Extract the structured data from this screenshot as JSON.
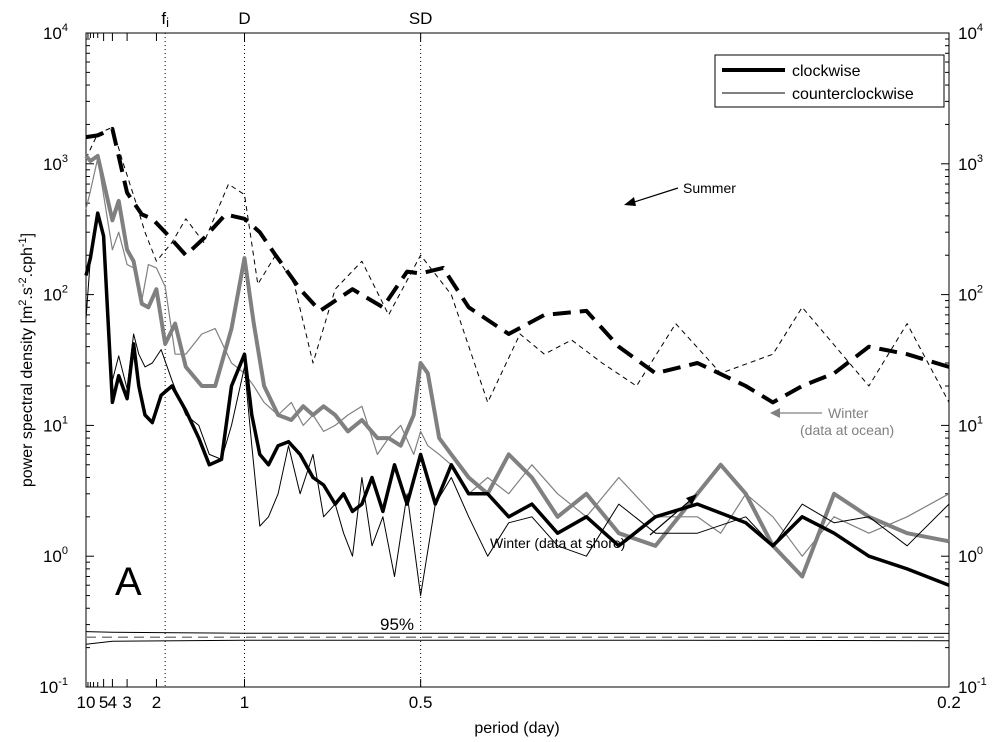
{
  "chart_data": {
    "type": "line",
    "xlabel": "period (day)",
    "ylabel": "power spectral density [m2.s-2.cph-1]",
    "ylabel_parts": {
      "main": "power spectral density [m",
      "sup1": "2",
      "mid1": ".s",
      "sup2": "-2",
      "mid2": ".cph",
      "sup3": "-1",
      "end": "]"
    },
    "x_scale": "reciprocal",
    "xlim": [
      10,
      0.2
    ],
    "y_scale": "log",
    "ylim": [
      0.1,
      10000
    ],
    "x_ticks": [
      10,
      5,
      4,
      3,
      2,
      1,
      0.5,
      0.2
    ],
    "x_tick_labels": [
      "10",
      "5",
      "4",
      "3",
      "2",
      "1",
      "0.5",
      "0.2"
    ],
    "y_ticks": [
      0.1,
      1,
      10,
      100,
      1000,
      10000
    ],
    "y_tick_labels": [
      {
        "base": "10",
        "exp": "-1"
      },
      {
        "base": "10",
        "exp": "0"
      },
      {
        "base": "10",
        "exp": "1"
      },
      {
        "base": "10",
        "exp": "2"
      },
      {
        "base": "10",
        "exp": "3"
      },
      {
        "base": "10",
        "exp": "4"
      }
    ],
    "grid": false,
    "panel_label": "A",
    "vertical_markers": [
      {
        "label": "f",
        "label_sub": "i",
        "x": 1.82
      },
      {
        "label": "D",
        "x": 1.0
      },
      {
        "label": "SD",
        "x": 0.5
      }
    ],
    "legend": {
      "placement": "top-right",
      "entries": [
        {
          "label": "clockwise",
          "style": "thick"
        },
        {
          "label": "counterclockwise",
          "style": "thin"
        }
      ]
    },
    "annotations": [
      {
        "text": "Summer",
        "color": "#000000"
      },
      {
        "text": "Winter",
        "text2": "(data at ocean)",
        "color": "#808080"
      },
      {
        "text": "Winter (data at shore)",
        "color": "#000000"
      },
      {
        "text": "95%",
        "color": "#000000"
      }
    ],
    "series": [
      {
        "group": "Summer",
        "direction": "clockwise",
        "color": "#000000",
        "width": 4,
        "dash": "18,9",
        "x": [
          10,
          6,
          4,
          3,
          2.4,
          2.1,
          1.82,
          1.5,
          1.3,
          1.12,
          1.0,
          0.92,
          0.85,
          0.76,
          0.7,
          0.62,
          0.56,
          0.52,
          0.5,
          0.47,
          0.44,
          0.4,
          0.37,
          0.34,
          0.32,
          0.3,
          0.28,
          0.26,
          0.25,
          0.24,
          0.23,
          0.22,
          0.21,
          0.2
        ],
        "y": [
          1600,
          1650,
          1850,
          600,
          410,
          380,
          300,
          200,
          270,
          410,
          380,
          300,
          200,
          110,
          75,
          110,
          80,
          150,
          145,
          160,
          80,
          50,
          70,
          75,
          40,
          25,
          30,
          20,
          15,
          20,
          25,
          40,
          35,
          28
        ]
      },
      {
        "group": "Summer",
        "direction": "counterclockwise",
        "color": "#000000",
        "width": 1,
        "dash": "5,4",
        "x": [
          10,
          6,
          4,
          3.2,
          2.6,
          2.3,
          2.0,
          1.7,
          1.5,
          1.3,
          1.1,
          1.0,
          0.93,
          0.85,
          0.78,
          0.72,
          0.66,
          0.6,
          0.55,
          0.5,
          0.46,
          0.42,
          0.39,
          0.37,
          0.35,
          0.33,
          0.31,
          0.29,
          0.27,
          0.25,
          0.24,
          0.22,
          0.21,
          0.2
        ],
        "y": [
          1100,
          1700,
          1900,
          1000,
          500,
          300,
          180,
          250,
          380,
          250,
          700,
          580,
          120,
          200,
          120,
          30,
          110,
          180,
          70,
          200,
          100,
          15,
          50,
          35,
          45,
          30,
          20,
          60,
          25,
          35,
          80,
          20,
          60,
          15
        ]
      },
      {
        "group": "Winter (data at ocean)",
        "direction": "clockwise",
        "color": "#808080",
        "width": 4,
        "dash": "",
        "x": [
          10,
          8,
          6,
          4,
          3.5,
          3.0,
          2.7,
          2.4,
          2.2,
          2.0,
          1.82,
          1.65,
          1.5,
          1.32,
          1.2,
          1.08,
          1.0,
          0.95,
          0.9,
          0.84,
          0.79,
          0.75,
          0.72,
          0.69,
          0.66,
          0.63,
          0.6,
          0.57,
          0.55,
          0.53,
          0.51,
          0.5,
          0.49,
          0.475,
          0.46,
          0.44,
          0.42,
          0.4,
          0.38,
          0.36,
          0.34,
          0.32,
          0.3,
          0.28,
          0.27,
          0.26,
          0.25,
          0.24,
          0.23,
          0.22,
          0.21,
          0.2
        ],
        "y": [
          1150,
          1050,
          1150,
          370,
          520,
          220,
          180,
          85,
          80,
          110,
          42,
          60,
          28,
          20,
          20,
          55,
          190,
          60,
          20,
          12,
          11,
          14,
          12,
          14,
          12,
          9,
          11,
          8,
          8,
          7,
          12,
          30,
          25,
          8,
          6,
          4,
          3,
          6,
          4,
          2,
          3,
          1.5,
          1.2,
          3,
          5,
          3,
          1.2,
          0.7,
          3,
          2,
          1.5,
          1.3
        ]
      },
      {
        "group": "Winter (data at ocean)",
        "direction": "counterclockwise",
        "color": "#808080",
        "width": 1.2,
        "dash": "",
        "x": [
          10,
          8,
          6,
          4,
          3.5,
          3.0,
          2.7,
          2.4,
          2.2,
          2.0,
          1.82,
          1.65,
          1.5,
          1.32,
          1.2,
          1.08,
          1.0,
          0.95,
          0.9,
          0.84,
          0.79,
          0.75,
          0.72,
          0.69,
          0.66,
          0.63,
          0.6,
          0.57,
          0.55,
          0.53,
          0.51,
          0.5,
          0.49,
          0.475,
          0.46,
          0.44,
          0.42,
          0.4,
          0.38,
          0.36,
          0.34,
          0.32,
          0.3,
          0.28,
          0.27,
          0.26,
          0.25,
          0.24,
          0.23,
          0.22,
          0.21,
          0.2
        ],
        "y": [
          450,
          620,
          1100,
          220,
          300,
          170,
          160,
          90,
          170,
          160,
          115,
          35,
          35,
          50,
          55,
          30,
          25,
          20,
          15,
          12,
          15,
          10,
          12,
          9,
          10,
          12,
          14,
          6,
          8,
          10,
          6,
          9,
          7,
          6,
          5,
          3,
          4,
          3,
          5,
          3,
          2,
          4,
          2,
          2,
          1.5,
          3,
          2,
          1,
          2,
          1.5,
          2,
          3
        ]
      },
      {
        "group": "Winter (data at shore)",
        "direction": "clockwise",
        "color": "#000000",
        "width": 3.5,
        "dash": "",
        "x": [
          10,
          8,
          6,
          5,
          4,
          3.5,
          3.0,
          2.7,
          2.5,
          2.3,
          2.1,
          1.9,
          1.7,
          1.5,
          1.35,
          1.25,
          1.15,
          1.08,
          1.0,
          0.96,
          0.92,
          0.88,
          0.84,
          0.8,
          0.76,
          0.72,
          0.69,
          0.66,
          0.64,
          0.62,
          0.6,
          0.58,
          0.56,
          0.54,
          0.52,
          0.5,
          0.48,
          0.46,
          0.44,
          0.42,
          0.4,
          0.38,
          0.36,
          0.34,
          0.32,
          0.3,
          0.28,
          0.26,
          0.25,
          0.24,
          0.23,
          0.22,
          0.21,
          0.2
        ],
        "y": [
          140,
          190,
          420,
          280,
          15,
          24,
          16,
          42,
          20,
          12,
          10.5,
          17,
          20,
          13,
          8,
          5,
          5.5,
          20,
          35,
          12,
          6,
          5,
          7,
          7.5,
          6,
          4,
          3.5,
          2.5,
          3,
          2.2,
          2.5,
          4,
          2.2,
          5,
          2.5,
          6,
          2.5,
          5,
          3,
          3,
          2,
          2.5,
          1.5,
          2,
          1.2,
          2,
          2.5,
          1.8,
          1.2,
          2,
          1.5,
          1,
          0.8,
          0.6
        ]
      },
      {
        "group": "Winter (data at shore)",
        "direction": "counterclockwise",
        "color": "#000000",
        "width": 1,
        "dash": "",
        "x": [
          10,
          8,
          6,
          5,
          4,
          3.5,
          3.0,
          2.7,
          2.5,
          2.3,
          2.1,
          1.9,
          1.7,
          1.5,
          1.35,
          1.25,
          1.15,
          1.08,
          1.0,
          0.96,
          0.92,
          0.88,
          0.84,
          0.8,
          0.76,
          0.72,
          0.69,
          0.66,
          0.64,
          0.62,
          0.6,
          0.58,
          0.56,
          0.54,
          0.52,
          0.5,
          0.48,
          0.46,
          0.44,
          0.42,
          0.4,
          0.38,
          0.36,
          0.34,
          0.32,
          0.3,
          0.28,
          0.26,
          0.25,
          0.24,
          0.23,
          0.22,
          0.21,
          0.2
        ],
        "y": [
          65,
          190,
          380,
          280,
          22,
          34,
          19,
          50,
          35,
          28,
          30,
          38,
          22,
          12,
          10,
          6,
          5.5,
          10,
          28,
          7,
          1.7,
          2,
          3,
          7,
          3,
          6,
          2,
          2.5,
          1.5,
          1,
          4,
          1.2,
          2,
          0.7,
          3,
          0.5,
          2.5,
          4,
          2,
          1,
          1.8,
          2,
          1.2,
          1,
          2.5,
          1.5,
          1.5,
          2,
          1.2,
          2.5,
          1.8,
          2,
          1.2,
          2.5
        ]
      }
    ],
    "confidence_95": {
      "upper": {
        "x": [
          10,
          4,
          1,
          0.3,
          0.2
        ],
        "y": [
          0.265,
          0.262,
          0.258,
          0.257,
          0.257
        ]
      },
      "mean": {
        "x": [
          10,
          0.2
        ],
        "y": [
          0.24,
          0.24
        ]
      },
      "lower": {
        "x": [
          10,
          4,
          1,
          0.3,
          0.2
        ],
        "y": [
          0.212,
          0.224,
          0.228,
          0.228,
          0.226
        ]
      }
    }
  }
}
